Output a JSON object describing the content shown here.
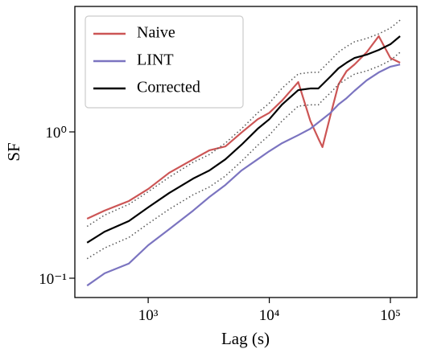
{
  "chart_data": {
    "type": "line",
    "x_label": "Lag (s)",
    "y_label": "SF",
    "xscale": "log",
    "yscale": "log",
    "xlim": [
      248,
      165600
    ],
    "ylim": [
      0.0738,
      7.2
    ],
    "xticks": [
      {
        "value": 1000,
        "label": "10³"
      },
      {
        "value": 10000,
        "label": "10⁴"
      },
      {
        "value": 100000,
        "label": "10⁵"
      }
    ],
    "yticks": [
      {
        "value": 0.1,
        "label": "10⁻¹"
      },
      {
        "value": 1,
        "label": "10⁰"
      }
    ],
    "legend": "upper left",
    "x": [
      313,
      437,
      693,
      1000,
      1489,
      2355,
      3200,
      4345,
      5900,
      8020,
      10000,
      12770,
      17340,
      21820,
      25420,
      27480,
      32010,
      37260,
      43440,
      50580,
      63680,
      80160,
      100000,
      120200
    ],
    "series": [
      {
        "name": "Naive",
        "color": "#cc5555",
        "style": "solid",
        "values": [
          0.255,
          0.29,
          0.337,
          0.407,
          0.525,
          0.65,
          0.748,
          0.796,
          0.99,
          1.22,
          1.35,
          1.64,
          2.19,
          1.19,
          0.9,
          0.787,
          1.3,
          2.11,
          2.6,
          2.89,
          3.5,
          4.51,
          3.2,
          2.97
        ]
      },
      {
        "name": "LINT",
        "color": "#7b74c0",
        "style": "solid",
        "values": [
          0.089,
          0.108,
          0.126,
          0.168,
          0.216,
          0.29,
          0.359,
          0.434,
          0.545,
          0.65,
          0.738,
          0.838,
          0.95,
          1.05,
          1.16,
          1.22,
          1.35,
          1.54,
          1.7,
          1.91,
          2.25,
          2.55,
          2.79,
          2.89
        ]
      },
      {
        "name": "Corrected",
        "color": "#000000",
        "style": "solid",
        "values": [
          0.175,
          0.208,
          0.246,
          0.305,
          0.382,
          0.48,
          0.545,
          0.65,
          0.817,
          1.05,
          1.22,
          1.54,
          1.93,
          1.98,
          1.98,
          2.11,
          2.39,
          2.72,
          2.97,
          3.2,
          3.37,
          3.63,
          3.97,
          4.51
        ]
      },
      {
        "color": "#555555",
        "style": "dotted",
        "values": [
          0.226,
          0.27,
          0.32,
          0.39,
          0.49,
          0.62,
          0.7,
          0.84,
          1.05,
          1.35,
          1.57,
          1.99,
          2.49,
          2.55,
          2.55,
          2.72,
          3.08,
          3.51,
          3.83,
          4.13,
          4.35,
          4.68,
          5.12,
          5.8
        ]
      },
      {
        "color": "#555555",
        "style": "dotted",
        "values": [
          0.136,
          0.161,
          0.19,
          0.236,
          0.296,
          0.372,
          0.42,
          0.5,
          0.63,
          0.81,
          0.95,
          1.19,
          1.5,
          1.53,
          1.53,
          1.64,
          1.85,
          2.11,
          2.3,
          2.48,
          2.61,
          2.81,
          3.08,
          3.5
        ]
      }
    ]
  }
}
